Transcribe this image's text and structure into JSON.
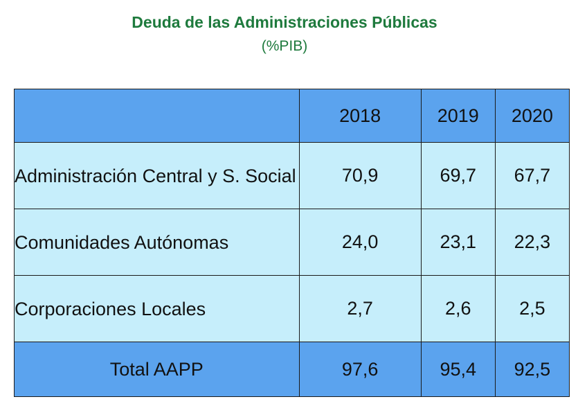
{
  "title": "Deuda de las Administraciones Públicas",
  "subtitle": "(%PIB)",
  "chart_data": {
    "type": "table",
    "title": "Deuda de las Administraciones Públicas",
    "subtitle": "(%PIB)",
    "columns": [
      "",
      "2018",
      "2019",
      "2020"
    ],
    "rows": [
      {
        "label": "Administración Central y S. Social",
        "values": [
          "70,9",
          "69,7",
          "67,7"
        ]
      },
      {
        "label": "Comunidades Autónomas",
        "values": [
          "24,0",
          "23,1",
          "22,3"
        ]
      },
      {
        "label": "Corporaciones Locales",
        "values": [
          "2,7",
          "2,6",
          "2,5"
        ]
      }
    ],
    "total": {
      "label": "Total AAPP",
      "values": [
        "97,6",
        "95,4",
        "92,5"
      ]
    },
    "colors": {
      "title": "#1e7a3d",
      "header_fill": "#5ba3ee",
      "row_fill": "#c6eefb",
      "border": "#1a1a1a"
    }
  }
}
